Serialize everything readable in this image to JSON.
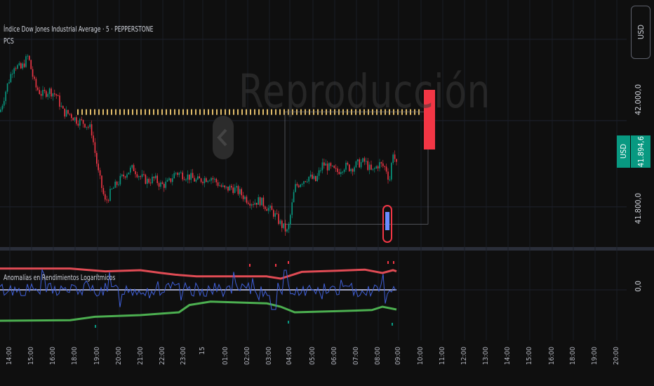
{
  "header": {
    "title": "Índice Dow Jones Industrial Average · 5 · PEPPERSTONE",
    "pcs": "PCS"
  },
  "indicator": {
    "title": "Anomalías en Rendimientos Logarítmicos"
  },
  "currency_button": "USD",
  "price_scale": {
    "labels": [
      "42.000,0",
      "41.800,0"
    ],
    "indicator_label": "0,0"
  },
  "last_price": {
    "currency": "USD",
    "value": "41.894,6"
  },
  "watermark": "Reproducción",
  "colors": {
    "up": "#089981",
    "down": "#f23645",
    "upper_band": "#e04b54",
    "lower_band": "#4caf50",
    "returns": "#3f5fd9",
    "zero": "#cfd6ff",
    "dotted": "#e0bc6a"
  },
  "chart_data": [
    {
      "type": "candlestick",
      "title": "Índice Dow Jones Industrial Average · 5 · PEPPERSTONE",
      "xlabel": "",
      "ylabel": "",
      "x_tick_labels": [
        "14:00",
        "15:00",
        "16:00",
        "18:00",
        "19:00",
        "20:00",
        "21:00",
        "22:00",
        "23:00",
        "15",
        "01:00",
        "02:00",
        "03:00",
        "04:00",
        "05:00",
        "06:00",
        "07:00",
        "08:00",
        "09:00",
        "10:00",
        "11:00",
        "12:00",
        "13:00",
        "14:00",
        "15:00",
        "16:00",
        "18:00",
        "19:00",
        "20:00"
      ],
      "y_tick_labels": [
        "42.000,0",
        "41.800,0"
      ],
      "ylim": [
        41710,
        42280
      ],
      "close_path": [
        [
          0,
          42020
        ],
        [
          10,
          42080
        ],
        [
          20,
          42130
        ],
        [
          30,
          42120
        ],
        [
          40,
          42150
        ],
        [
          50,
          42080
        ],
        [
          60,
          42060
        ],
        [
          70,
          42070
        ],
        [
          80,
          42060
        ],
        [
          90,
          42020
        ],
        [
          100,
          42015
        ],
        [
          110,
          42000
        ],
        [
          120,
          41995
        ],
        [
          130,
          41980
        ],
        [
          140,
          41880
        ],
        [
          150,
          41810
        ],
        [
          160,
          41840
        ],
        [
          170,
          41860
        ],
        [
          180,
          41880
        ],
        [
          190,
          41890
        ],
        [
          200,
          41870
        ],
        [
          210,
          41860
        ],
        [
          220,
          41865
        ],
        [
          230,
          41850
        ],
        [
          240,
          41855
        ],
        [
          250,
          41880
        ],
        [
          260,
          41875
        ],
        [
          270,
          41870
        ],
        [
          280,
          41860
        ],
        [
          290,
          41865
        ],
        [
          300,
          41870
        ],
        [
          310,
          41855
        ],
        [
          320,
          41840
        ],
        [
          330,
          41845
        ],
        [
          340,
          41835
        ],
        [
          350,
          41820
        ],
        [
          360,
          41810
        ],
        [
          370,
          41815
        ],
        [
          380,
          41800
        ],
        [
          390,
          41785
        ],
        [
          400,
          41760
        ],
        [
          410,
          41740
        ],
        [
          420,
          41845
        ],
        [
          430,
          41860
        ],
        [
          440,
          41870
        ],
        [
          450,
          41860
        ],
        [
          460,
          41900
        ],
        [
          470,
          41890
        ],
        [
          480,
          41880
        ],
        [
          490,
          41895
        ],
        [
          500,
          41890
        ],
        [
          510,
          41900
        ],
        [
          520,
          41905
        ],
        [
          530,
          41880
        ],
        [
          540,
          41900
        ],
        [
          550,
          41890
        ],
        [
          555,
          41860
        ],
        [
          560,
          41930
        ],
        [
          565,
          41895
        ]
      ],
      "last_price": 41894.6,
      "box_range": [
        41760,
        42020
      ],
      "dotted_level": 42020
    },
    {
      "type": "line",
      "title": "Anomalías en Rendimientos Logarítmicos",
      "y_tick_labels": [
        "0,0"
      ],
      "ylim": [
        -1,
        1
      ],
      "series": [
        {
          "name": "upper",
          "values": [
            [
              0,
              0.38
            ],
            [
              100,
              0.38
            ],
            [
              150,
              0.33
            ],
            [
              200,
              0.35
            ],
            [
              230,
              0.3
            ],
            [
              250,
              0.27
            ],
            [
              280,
              0.24
            ],
            [
              380,
              0.24
            ],
            [
              400,
              0.2
            ],
            [
              430,
              0.32
            ],
            [
              480,
              0.34
            ],
            [
              520,
              0.36
            ],
            [
              545,
              0.3
            ],
            [
              560,
              0.35
            ],
            [
              565,
              0.33
            ]
          ]
        },
        {
          "name": "lower",
          "values": [
            [
              0,
              -0.55
            ],
            [
              100,
              -0.54
            ],
            [
              135,
              -0.48
            ],
            [
              200,
              -0.45
            ],
            [
              255,
              -0.4
            ],
            [
              270,
              -0.27
            ],
            [
              300,
              -0.21
            ],
            [
              380,
              -0.24
            ],
            [
              400,
              -0.3
            ],
            [
              420,
              -0.4
            ],
            [
              480,
              -0.38
            ],
            [
              530,
              -0.36
            ],
            [
              545,
              -0.3
            ],
            [
              565,
              -0.35
            ]
          ]
        }
      ]
    }
  ],
  "x_positions": [
    14,
    45,
    76,
    107,
    139,
    170,
    201,
    232,
    262,
    289,
    322,
    353,
    384,
    413,
    446,
    477,
    508,
    539,
    568,
    600,
    631,
    662,
    693,
    724,
    755,
    787,
    817,
    848,
    879
  ]
}
